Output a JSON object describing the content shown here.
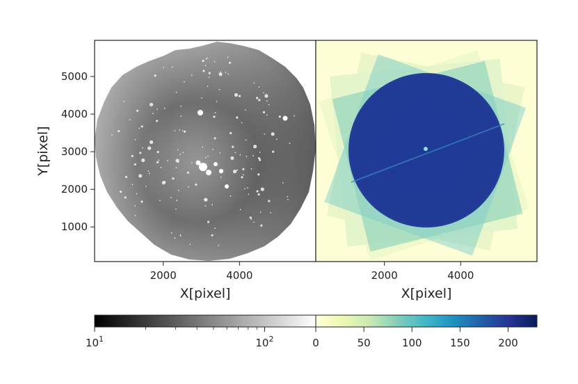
{
  "chart_data": [
    {
      "type": "heatmap",
      "name": "mosaic-image",
      "colormap": "gray-log",
      "xlabel": "X[pixel]",
      "ylabel": "Y[pixel]",
      "xlim": [
        200,
        6000
      ],
      "ylim": [
        80,
        5960
      ],
      "xticks": [
        2000,
        4000
      ],
      "xtick_labels": [
        "2000",
        "4000"
      ],
      "yticks": [
        1000,
        2000,
        3000,
        4000,
        5000
      ],
      "ytick_labels": [
        "1000",
        "2000",
        "3000",
        "4000",
        "5000"
      ]
    },
    {
      "type": "heatmap",
      "name": "exposure-map",
      "colormap": "YlGnBu",
      "xlabel": "X[pixel]",
      "xlim": [
        200,
        6000
      ],
      "ylim": [
        80,
        5960
      ],
      "xticks": [
        2000,
        4000
      ],
      "xtick_labels": [
        "2000",
        "4000"
      ]
    }
  ],
  "colorbars": {
    "left": {
      "scale": "log",
      "range": [
        10,
        200
      ],
      "ticks": [
        {
          "value": 10,
          "base": "10",
          "exp": "1"
        },
        {
          "value": 100,
          "base": "10",
          "exp": "2"
        }
      ],
      "colors": [
        "#000000",
        "#ffffff"
      ]
    },
    "right": {
      "scale": "linear",
      "range": [
        0,
        230
      ],
      "ticks": [
        0,
        50,
        100,
        150,
        200
      ],
      "colors": [
        "#ffffd9",
        "#edf8b1",
        "#c7e9b4",
        "#7fcdbb",
        "#41b6c4",
        "#1d91c0",
        "#225ea8",
        "#253494",
        "#081d58"
      ]
    }
  }
}
